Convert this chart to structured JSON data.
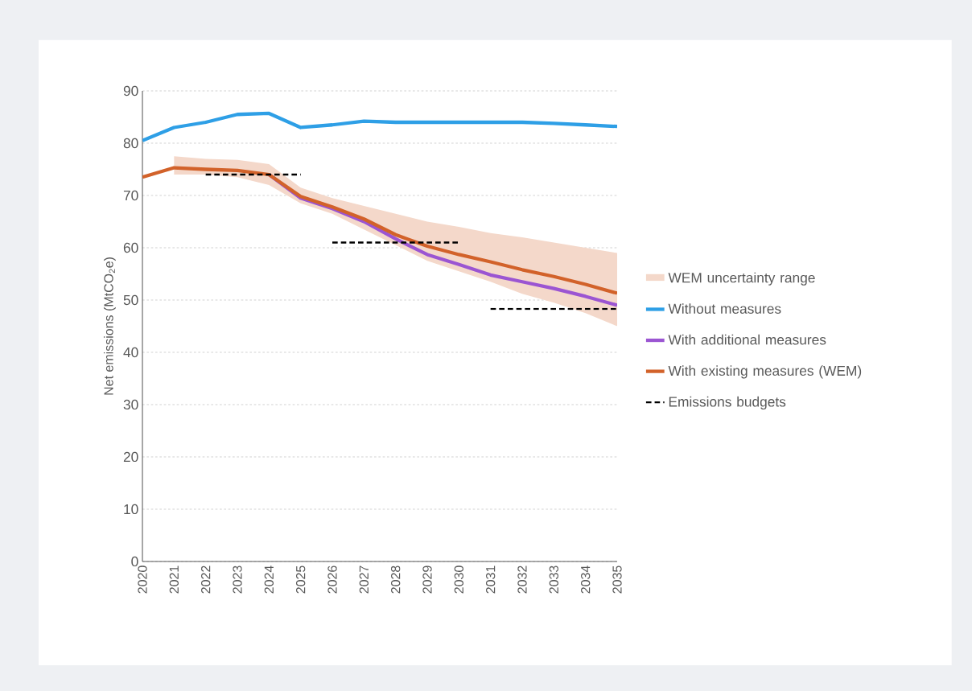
{
  "chart_data": {
    "type": "line",
    "ylabel": "Net emissions (MtCO$_{2}$e)",
    "categories": [
      "2020",
      "2021",
      "2022",
      "2023",
      "2024",
      "2025",
      "2026",
      "2027",
      "2028",
      "2029",
      "2030",
      "2031",
      "2032",
      "2033",
      "2034",
      "2035"
    ],
    "annotations": [
      "WEM uncertainty range"
    ],
    "ylim": [
      0,
      90
    ],
    "yticks": [
      0,
      10,
      20,
      30,
      40,
      50,
      60,
      70,
      80,
      90
    ],
    "grid": "y",
    "legend": "right",
    "series": [
      {
        "name": "Without measures",
        "color": "#2e9fe6",
        "values": [
          80.5,
          83,
          84,
          85.5,
          85.7,
          83,
          83.5,
          84.2,
          84,
          84,
          84,
          84,
          84,
          83.8,
          83.5,
          83.2
        ]
      },
      {
        "name": "With additional measures",
        "color": "#9b55d2",
        "values": [
          null,
          null,
          null,
          null,
          74,
          69.5,
          67.5,
          65,
          61.7,
          58.7,
          56.8,
          54.8,
          53.5,
          52.2,
          50.7,
          49
        ]
      },
      {
        "name": "With existing measures (WEM)",
        "color": "#d2622a",
        "values": [
          73.5,
          75.3,
          75,
          74.8,
          74,
          69.8,
          67.8,
          65.5,
          62.5,
          60.3,
          58.7,
          57.3,
          55.8,
          54.5,
          53,
          51.3
        ],
        "lower": [
          null,
          74,
          74,
          73.5,
          72,
          68.5,
          66.5,
          63.5,
          60.5,
          57.5,
          55.5,
          53.5,
          51.2,
          49.5,
          47.5,
          45
        ],
        "upper": [
          null,
          77.5,
          77,
          76.8,
          76,
          71.5,
          69.5,
          68,
          66.5,
          65,
          64,
          62.8,
          62,
          61,
          60,
          59
        ]
      },
      {
        "name": "Emissions budgets",
        "color": "#000000",
        "line_style": "dashed",
        "values": [
          null,
          null,
          74,
          74,
          74,
          74,
          null,
          null,
          null,
          null,
          null,
          null,
          null,
          null,
          null,
          null
        ]
      },
      {
        "color": "#000000",
        "line_style": "dashed",
        "values": [
          null,
          null,
          null,
          null,
          null,
          null,
          61,
          61,
          61,
          61,
          61,
          null,
          null,
          null,
          null,
          null
        ]
      },
      {
        "color": "#000000",
        "line_style": "dashed",
        "values": [
          null,
          null,
          null,
          null,
          null,
          null,
          null,
          null,
          null,
          null,
          null,
          48.3,
          48.3,
          48.3,
          48.3,
          48.3
        ]
      }
    ]
  }
}
